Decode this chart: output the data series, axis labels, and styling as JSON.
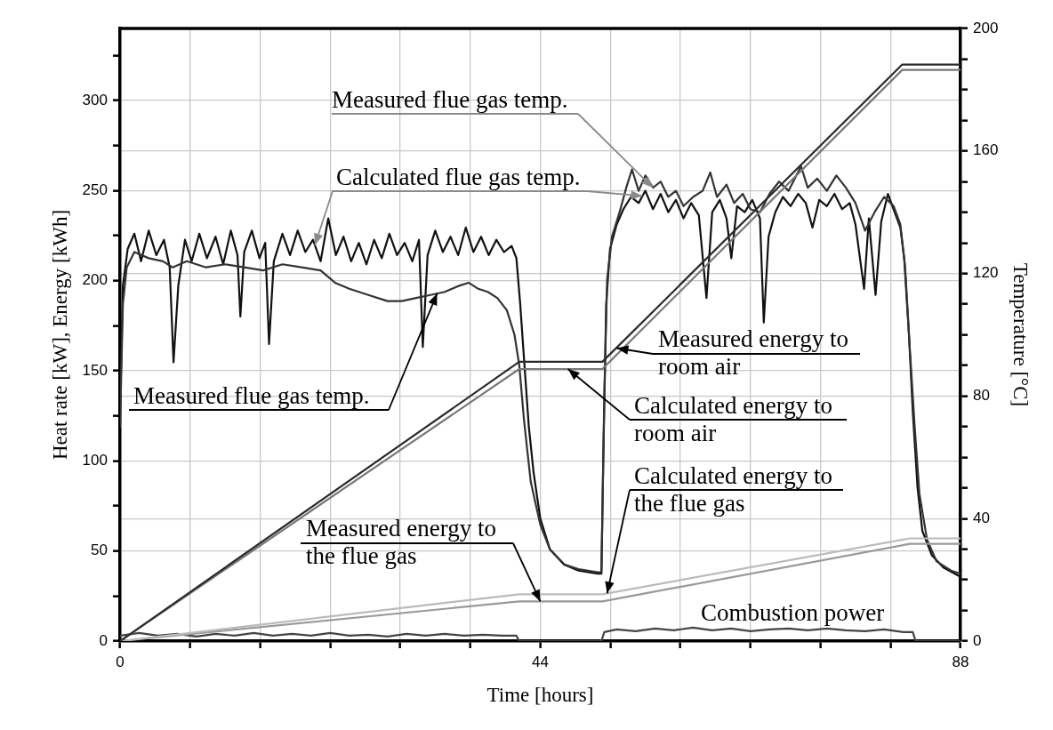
{
  "chart_data": {
    "type": "line",
    "xlabel": "Time [hours]",
    "ylabel": "Heat rate [kW], Energy [kWh]",
    "y2label": "Temperature [°C]",
    "xlim": [
      0,
      88
    ],
    "xticks": [
      0,
      {
        "value": 7.33,
        "label": null
      },
      {
        "value": 14.67,
        "label": null
      },
      {
        "value": 22,
        "label": null
      },
      {
        "value": 29.33,
        "label": null
      },
      {
        "value": 36.67,
        "label": null
      },
      44,
      {
        "value": 51.33,
        "label": null
      },
      {
        "value": 58.67,
        "label": null
      },
      {
        "value": 66,
        "label": null
      },
      {
        "value": 73.33,
        "label": null
      },
      {
        "value": 80.67,
        "label": null
      },
      88
    ],
    "ylim": [
      0,
      340
    ],
    "yticks": [
      0,
      {
        "value": 25,
        "label": null
      },
      50,
      {
        "value": 75,
        "label": null
      },
      100,
      {
        "value": 125,
        "label": null
      },
      150,
      {
        "value": 175,
        "label": null
      },
      200,
      {
        "value": 225,
        "label": null
      },
      250,
      {
        "value": 275,
        "label": null
      },
      300,
      {
        "value": 325,
        "label": null
      }
    ],
    "y2lim": [
      0,
      200
    ],
    "y2ticks": [
      0,
      {
        "value": 10,
        "label": null
      },
      {
        "value": 20,
        "label": null
      },
      {
        "value": 30,
        "label": null
      },
      40,
      {
        "value": 50,
        "label": null
      },
      {
        "value": 60,
        "label": null
      },
      {
        "value": 70,
        "label": null
      },
      80,
      {
        "value": 90,
        "label": null
      },
      {
        "value": 100,
        "label": null
      },
      {
        "value": 110,
        "label": null
      },
      120,
      {
        "value": 130,
        "label": null
      },
      {
        "value": 140,
        "label": null
      },
      {
        "value": 150,
        "label": null
      },
      160,
      {
        "value": 170,
        "label": null
      },
      {
        "value": 180,
        "label": null
      },
      {
        "value": 190,
        "label": null
      },
      200
    ],
    "grid": true,
    "legend": false,
    "marker": "none",
    "line_style": "solid",
    "series": [
      {
        "color": "#2a2a2a",
        "axis": "y",
        "x": [
          0,
          41.8,
          50.5,
          81.9,
          88
        ],
        "values": [
          0,
          155,
          155,
          320,
          320
        ]
      },
      {
        "color": "#777777",
        "axis": "y",
        "x": [
          0,
          41.8,
          50.5,
          81.9,
          88
        ],
        "values": [
          0,
          151,
          151,
          317,
          317
        ]
      },
      {
        "color": "#bbbbbb",
        "axis": "y",
        "x": [
          0,
          41.8,
          50.5,
          82.7,
          88
        ],
        "values": [
          0,
          26,
          26,
          57,
          57
        ]
      },
      {
        "color": "#999999",
        "axis": "y",
        "x": [
          0,
          41.8,
          50.5,
          82.7,
          88
        ],
        "values": [
          0,
          22,
          22,
          54,
          54
        ]
      },
      {
        "color": "#444444",
        "axis": "y",
        "x": [
          0,
          2,
          4,
          6,
          8,
          10,
          12,
          14,
          16,
          18,
          20,
          22,
          24,
          26,
          28,
          30,
          32,
          34,
          36,
          38,
          40,
          41.5,
          41.8,
          50.4,
          50.7,
          52,
          54,
          56,
          58,
          60,
          62,
          64,
          66,
          68,
          70,
          72,
          74,
          76,
          78,
          80,
          82,
          83,
          83.3,
          88
        ],
        "values": [
          3,
          4.5,
          3,
          4,
          2.5,
          4,
          3,
          4.5,
          3,
          4,
          3,
          4.5,
          3,
          3.5,
          2.5,
          4,
          3,
          4,
          3,
          3.5,
          3,
          3,
          0,
          0,
          5,
          6.5,
          5.5,
          7,
          6,
          7.5,
          6,
          7,
          5.5,
          6.5,
          7,
          6,
          7,
          6,
          5.5,
          6.5,
          5,
          5,
          0,
          0
        ]
      },
      {
        "color": "#333333",
        "axis": "y2",
        "x": [
          0,
          0.3,
          0.7,
          1.5,
          3,
          4.5,
          5.5,
          7,
          9,
          11,
          13,
          15,
          17,
          19,
          21,
          22.5,
          24,
          26,
          28,
          29.5,
          31,
          32.5,
          34,
          35.5,
          36.5,
          37.5,
          38.5,
          39.5,
          40.5,
          41.3,
          41.8,
          42.3,
          43,
          44,
          45,
          46.5,
          48,
          50,
          50.4,
          50.7,
          51,
          51.5,
          52.3,
          53,
          53.6,
          54.3,
          55,
          55.8,
          56.6,
          57.4,
          58.2,
          59,
          60,
          61,
          61.8,
          62.5,
          63.5,
          64.3,
          65.2,
          66,
          67,
          68,
          69,
          70,
          71.3,
          72,
          73,
          74,
          75,
          76,
          77,
          78,
          79,
          80,
          81,
          81.7,
          82.2,
          82.7,
          83.2,
          83.7,
          84.5,
          85.5,
          87,
          88
        ],
        "values": [
          70,
          110,
          122,
          127,
          125,
          124,
          122,
          124,
          122,
          123,
          122,
          121,
          123,
          122,
          121,
          117,
          115,
          113,
          111,
          111,
          112,
          113,
          114,
          116,
          117,
          115,
          114,
          112,
          108,
          100,
          90,
          72,
          52,
          38,
          30,
          25,
          23.5,
          22.5,
          22.5,
          80,
          118,
          132,
          140,
          148,
          154,
          147,
          152,
          148,
          150,
          145,
          147,
          142,
          145,
          147,
          153,
          145,
          149,
          143,
          146,
          141,
          140,
          146,
          150,
          147,
          155,
          148,
          151,
          147,
          152,
          148,
          143,
          134,
          140,
          145,
          142,
          136,
          122,
          95,
          70,
          48,
          33,
          26,
          23,
          22
        ]
      },
      {
        "color": "#111111",
        "axis": "y2",
        "x": [
          0,
          0.3,
          0.8,
          1.5,
          2.2,
          3,
          3.8,
          4.6,
          5.2,
          5.6,
          6.1,
          6.8,
          7.5,
          8.3,
          9.1,
          10,
          10.8,
          11.6,
          12.3,
          12.6,
          13,
          13.8,
          14.6,
          15.2,
          15.6,
          16.1,
          17,
          17.8,
          18.6,
          19.4,
          20.2,
          21,
          21.8,
          22.6,
          23.4,
          24.2,
          25,
          25.8,
          26.6,
          27.4,
          28.2,
          29,
          29.8,
          30.6,
          31.3,
          31.7,
          32.2,
          33,
          33.8,
          34.6,
          35.4,
          36.2,
          37,
          37.8,
          38.6,
          39.4,
          40.2,
          41,
          41.5,
          41.9,
          42.3,
          42.8,
          43.3,
          44,
          45,
          46.5,
          48,
          50,
          50.4,
          50.6,
          50.9,
          51.3,
          52,
          52.7,
          53.5,
          54.3,
          55,
          55.8,
          56.6,
          57.4,
          58.2,
          59,
          59.8,
          60.6,
          61.4,
          62,
          62.8,
          63.5,
          64,
          64.6,
          65.4,
          66.2,
          67,
          67.4,
          67.9,
          68.6,
          69.4,
          70.2,
          71,
          71.8,
          72.5,
          73.2,
          74,
          74.8,
          75.6,
          76.4,
          77,
          77.9,
          78.4,
          79.1,
          79.7,
          80.4,
          81.1,
          81.7,
          82.1,
          82.6,
          83,
          83.5,
          84,
          85,
          86.2,
          88
        ],
        "values": [
          75,
          116,
          128,
          133,
          124,
          134,
          126,
          131,
          122,
          91,
          116,
          131,
          124,
          133,
          125,
          132,
          123,
          134,
          126,
          106,
          127,
          134,
          125,
          130,
          97,
          124,
          133,
          126,
          134,
          127,
          131,
          124,
          138,
          126,
          132,
          124,
          130,
          123,
          131,
          125,
          133,
          126,
          130,
          124,
          131,
          96,
          126,
          134,
          127,
          132,
          126,
          135,
          127,
          132,
          126,
          131,
          127,
          129,
          125,
          110,
          92,
          70,
          55,
          40,
          30,
          25,
          23,
          22,
          22,
          60,
          110,
          128,
          136,
          141,
          145,
          143,
          147,
          141,
          146,
          140,
          144,
          138,
          143,
          139,
          112,
          140,
          144,
          138,
          125,
          142,
          140,
          144,
          138,
          104,
          132,
          140,
          145,
          142,
          146,
          143,
          135,
          144,
          142,
          146,
          141,
          143,
          136,
          115,
          138,
          113,
          137,
          146,
          140,
          135,
          125,
          100,
          75,
          50,
          36,
          28,
          24,
          21
        ]
      }
    ],
    "annotations": [
      {
        "text": "Measured flue gas temp.",
        "x": 55.8,
        "y": 251.6
      },
      {
        "text": "Calculated flue gas temp.",
        "x": 54.7,
        "y": 247
      },
      {
        "text": "Measured flue gas temp.",
        "x": 33.2,
        "y": 192.9
      },
      {
        "text": "Measured energy to room air",
        "x": 52,
        "y": 162.6
      },
      {
        "text": "Calculated energy to room air",
        "x": 46.9,
        "y": 151
      },
      {
        "text": "Calculated energy to the flue gas",
        "x": 51,
        "y": 26.5
      },
      {
        "text": "Measured energy to the flue gas",
        "x": 44,
        "y": 22
      },
      "Combustion power"
    ]
  }
}
